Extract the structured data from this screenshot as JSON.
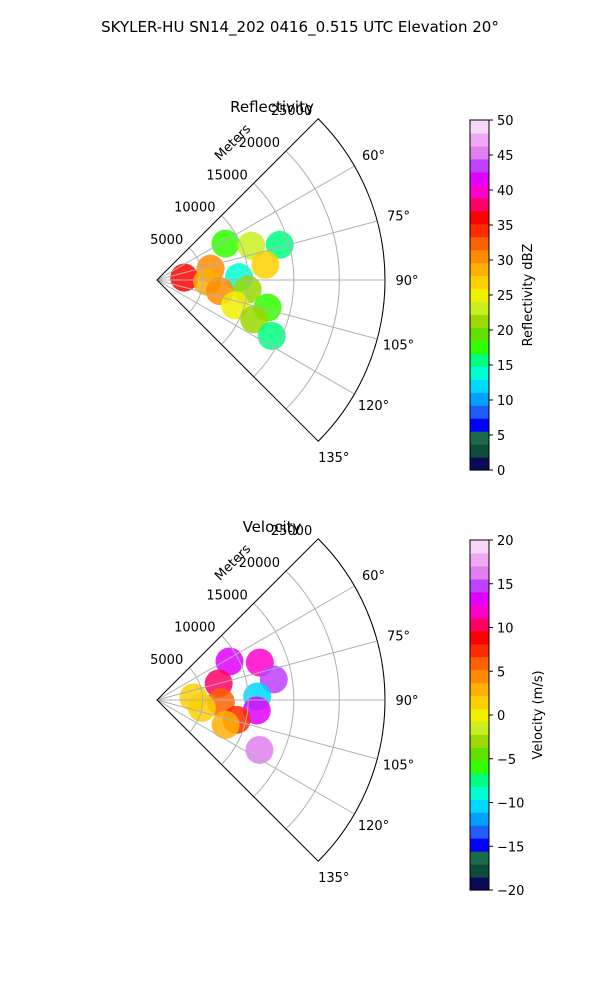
{
  "figure": {
    "title": "SKYLER-HU  SN14_202  0416_0.515 UTC Elevation 20°"
  },
  "chart_data": [
    {
      "type": "heatmap",
      "title": "Reflectivity",
      "radial_label": "Meters",
      "radial_ticks": [
        5000,
        10000,
        15000,
        20000,
        25000
      ],
      "radial_tick_labels": [
        "5000",
        "10000",
        "15000",
        "20000",
        "25000"
      ],
      "rlim": [
        0,
        25000
      ],
      "azimuth_range_deg": [
        45,
        135
      ],
      "azimuth_ticks_deg": [
        60,
        75,
        90,
        105,
        120,
        135
      ],
      "azimuth_tick_labels": [
        "60°",
        "75°",
        "90°",
        "105°",
        "120°",
        "135°"
      ],
      "grid": true,
      "colorbar": {
        "label": "Reflectivity dBZ",
        "range": [
          0,
          50
        ],
        "ticks": [
          0,
          5,
          10,
          15,
          20,
          25,
          30,
          35,
          40,
          45,
          50
        ],
        "tick_labels": [
          "0",
          "5",
          "10",
          "15",
          "20",
          "25",
          "30",
          "35",
          "40",
          "45",
          "50"
        ],
        "colors": [
          "#0a0a5a",
          "#0f4a3a",
          "#1b6b4a",
          "#0000ff",
          "#1e5cff",
          "#00a0ff",
          "#00d8ff",
          "#00ffd0",
          "#00ff80",
          "#30ff00",
          "#60e000",
          "#9ad800",
          "#c8f020",
          "#f0f000",
          "#ffd000",
          "#ffb000",
          "#ff8c00",
          "#ff6000",
          "#ff2a00",
          "#ff0000",
          "#ff0066",
          "#ff00cc",
          "#e000ff",
          "#c040ff",
          "#e080f0",
          "#f0a8f4",
          "#f8d8f8"
        ]
      },
      "echo_regions": [
        {
          "az_deg": 62,
          "r_m": 8500,
          "value": 18
        },
        {
          "az_deg": 70,
          "r_m": 11000,
          "value": 24
        },
        {
          "az_deg": 74,
          "r_m": 14000,
          "value": 15
        },
        {
          "az_deg": 78,
          "r_m": 6000,
          "value": 30
        },
        {
          "az_deg": 82,
          "r_m": 12000,
          "value": 26
        },
        {
          "az_deg": 85,
          "r_m": 3000,
          "value": 36
        },
        {
          "az_deg": 88,
          "r_m": 9000,
          "value": 14
        },
        {
          "az_deg": 92,
          "r_m": 5500,
          "value": 28
        },
        {
          "az_deg": 96,
          "r_m": 10000,
          "value": 22
        },
        {
          "az_deg": 100,
          "r_m": 7000,
          "value": 30
        },
        {
          "az_deg": 104,
          "r_m": 12500,
          "value": 18
        },
        {
          "az_deg": 108,
          "r_m": 9000,
          "value": 25
        },
        {
          "az_deg": 112,
          "r_m": 11500,
          "value": 21
        },
        {
          "az_deg": 116,
          "r_m": 14000,
          "value": 16
        }
      ]
    },
    {
      "type": "heatmap",
      "title": "Velocity",
      "radial_label": "Meters",
      "radial_ticks": [
        5000,
        10000,
        15000,
        20000,
        25000
      ],
      "radial_tick_labels": [
        "5000",
        "10000",
        "15000",
        "20000",
        "25000"
      ],
      "rlim": [
        0,
        25000
      ],
      "azimuth_range_deg": [
        45,
        135
      ],
      "azimuth_ticks_deg": [
        60,
        75,
        90,
        105,
        120,
        135
      ],
      "azimuth_tick_labels": [
        "60°",
        "75°",
        "90°",
        "105°",
        "120°",
        "135°"
      ],
      "grid": true,
      "colorbar": {
        "label": "Velocity (m/s)",
        "range": [
          -20,
          20
        ],
        "ticks": [
          -20,
          -15,
          -10,
          -5,
          0,
          5,
          10,
          15,
          20
        ],
        "tick_labels": [
          "−20",
          "−15",
          "−10",
          "−5",
          "0",
          "5",
          "10",
          "15",
          "20"
        ],
        "colors": [
          "#0a0a5a",
          "#0f4a3a",
          "#1b6b4a",
          "#0000ff",
          "#1e5cff",
          "#00a0ff",
          "#00d8ff",
          "#00ffd0",
          "#00ff80",
          "#30ff00",
          "#60e000",
          "#9ad800",
          "#c8f020",
          "#f0f000",
          "#ffd000",
          "#ffb000",
          "#ff8c00",
          "#ff6000",
          "#ff2a00",
          "#ff0000",
          "#ff0066",
          "#ff00cc",
          "#e000ff",
          "#c040ff",
          "#e080f0",
          "#f0a8f4",
          "#f8d8f8"
        ]
      },
      "echo_regions": [
        {
          "az_deg": 62,
          "r_m": 9000,
          "value": 14
        },
        {
          "az_deg": 70,
          "r_m": 12000,
          "value": 12
        },
        {
          "az_deg": 75,
          "r_m": 7000,
          "value": 10
        },
        {
          "az_deg": 80,
          "r_m": 13000,
          "value": 15
        },
        {
          "az_deg": 86,
          "r_m": 4000,
          "value": 2
        },
        {
          "az_deg": 88,
          "r_m": 11000,
          "value": -11
        },
        {
          "az_deg": 92,
          "r_m": 7000,
          "value": 6
        },
        {
          "az_deg": 96,
          "r_m": 11000,
          "value": 14
        },
        {
          "az_deg": 100,
          "r_m": 5000,
          "value": 1
        },
        {
          "az_deg": 104,
          "r_m": 9000,
          "value": 8
        },
        {
          "az_deg": 110,
          "r_m": 8000,
          "value": 3
        },
        {
          "az_deg": 116,
          "r_m": 12500,
          "value": 16
        }
      ]
    }
  ]
}
